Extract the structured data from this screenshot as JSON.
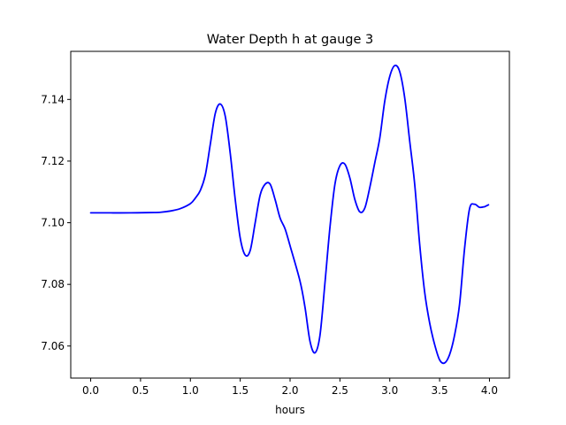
{
  "chart_data": {
    "type": "line",
    "title": "Water Depth h at gauge 3",
    "xlabel": "hours",
    "ylabel": "",
    "xlim": [
      -0.2,
      4.2
    ],
    "ylim": [
      7.0496,
      7.1556
    ],
    "xticks": [
      0.0,
      0.5,
      1.0,
      1.5,
      2.0,
      2.5,
      3.0,
      3.5,
      4.0
    ],
    "xtick_labels": [
      "0.0",
      "0.5",
      "1.0",
      "1.5",
      "2.0",
      "2.5",
      "3.0",
      "3.5",
      "4.0"
    ],
    "yticks": [
      7.06,
      7.08,
      7.1,
      7.12,
      7.14
    ],
    "ytick_labels": [
      "7.06",
      "7.08",
      "7.10",
      "7.12",
      "7.14"
    ],
    "grid": false,
    "series": [
      {
        "color": "#0000ff",
        "x": [
          0.0,
          0.2,
          0.4,
          0.6,
          0.7,
          0.8,
          0.9,
          1.0,
          1.05,
          1.1,
          1.15,
          1.2,
          1.25,
          1.3,
          1.35,
          1.4,
          1.45,
          1.5,
          1.55,
          1.6,
          1.65,
          1.7,
          1.75,
          1.8,
          1.85,
          1.9,
          1.95,
          2.0,
          2.1,
          2.15,
          2.2,
          2.25,
          2.3,
          2.35,
          2.4,
          2.45,
          2.5,
          2.55,
          2.6,
          2.65,
          2.7,
          2.75,
          2.8,
          2.85,
          2.9,
          2.95,
          3.0,
          3.05,
          3.1,
          3.15,
          3.2,
          3.25,
          3.3,
          3.35,
          3.4,
          3.45,
          3.5,
          3.55,
          3.6,
          3.65,
          3.7,
          3.75,
          3.8,
          3.85,
          3.9,
          3.95,
          3.97,
          3.99
        ],
        "y": [
          7.1032,
          7.1032,
          7.1032,
          7.1033,
          7.1034,
          7.1038,
          7.1046,
          7.1062,
          7.108,
          7.1105,
          7.1155,
          7.1255,
          7.1355,
          7.1385,
          7.1345,
          7.1225,
          7.1075,
          7.095,
          7.0895,
          7.091,
          7.1,
          7.109,
          7.1125,
          7.1125,
          7.1075,
          7.1015,
          7.098,
          7.0925,
          7.081,
          7.0725,
          7.0615,
          7.0578,
          7.0635,
          7.0805,
          7.0985,
          7.1125,
          7.1185,
          7.119,
          7.1145,
          7.1075,
          7.1035,
          7.1048,
          7.1115,
          7.1195,
          7.1275,
          7.1395,
          7.1475,
          7.151,
          7.149,
          7.1405,
          7.1265,
          7.1125,
          7.093,
          7.0775,
          7.0675,
          7.0605,
          7.0555,
          7.0545,
          7.0572,
          7.0635,
          7.0735,
          7.0915,
          7.1045,
          7.106,
          7.105,
          7.1052,
          7.1055,
          7.1058
        ]
      }
    ]
  }
}
